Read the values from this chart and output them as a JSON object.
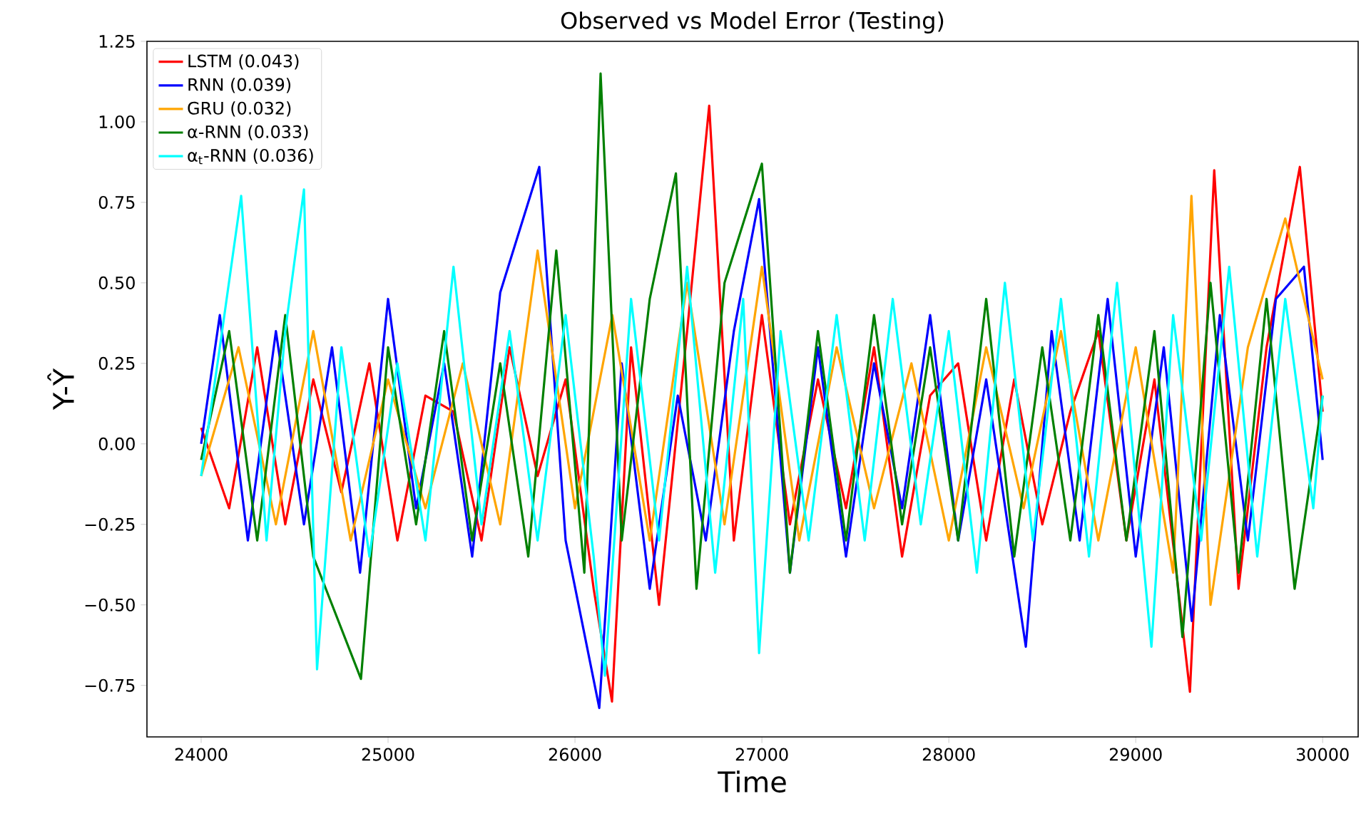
{
  "chart_data": {
    "type": "line",
    "title": "Observed vs Model Error (Testing)",
    "xlabel": "Time",
    "ylabel": "Y-Ŷ",
    "xlim": [
      23710,
      30190
    ],
    "ylim": [
      -0.91,
      1.25
    ],
    "xticks": [
      24000,
      25000,
      26000,
      27000,
      28000,
      29000,
      30000
    ],
    "yticks": [
      {
        "value": -0.75,
        "label": "−0.75"
      },
      {
        "value": -0.5,
        "label": "−0.50"
      },
      {
        "value": -0.25,
        "label": "−0.25"
      },
      {
        "value": 0,
        "label": "0.00"
      },
      {
        "value": 0.25,
        "label": "0.25"
      },
      {
        "value": 0.5,
        "label": "0.50"
      },
      {
        "value": 0.75,
        "label": "0.75"
      },
      {
        "value": 1.0,
        "label": "1.00"
      },
      {
        "value": 1.25,
        "label": "1.25"
      }
    ],
    "legend": "top left",
    "line_style": "solid",
    "series": [
      {
        "name": "LSTM (0.043)",
        "color": "#ff0000",
        "x": [
          24000,
          24150,
          24300,
          24450,
          24600,
          24750,
          24900,
          25050,
          25200,
          25350,
          25500,
          25650,
          25800,
          25950,
          26100,
          26198,
          26300,
          26450,
          26600,
          26718,
          26850,
          27000,
          27150,
          27300,
          27450,
          27600,
          27750,
          27900,
          28050,
          28200,
          28350,
          28500,
          28650,
          28800,
          28950,
          29100,
          29290,
          29420,
          29550,
          29700,
          29878,
          30000
        ],
        "values": [
          0.05,
          -0.2,
          0.3,
          -0.25,
          0.2,
          -0.15,
          0.25,
          -0.3,
          0.15,
          0.1,
          -0.3,
          0.3,
          -0.1,
          0.2,
          -0.45,
          -0.8,
          0.3,
          -0.5,
          0.35,
          1.05,
          -0.3,
          0.4,
          -0.25,
          0.2,
          -0.2,
          0.3,
          -0.35,
          0.15,
          0.25,
          -0.3,
          0.2,
          -0.25,
          0.1,
          0.35,
          -0.3,
          0.2,
          -0.77,
          0.85,
          -0.45,
          0.3,
          0.86,
          0.1
        ]
      },
      {
        "name": "RNN (0.039)",
        "color": "#0000ff",
        "x": [
          24000,
          24100,
          24250,
          24400,
          24550,
          24700,
          24850,
          25000,
          25150,
          25300,
          25450,
          25600,
          25809,
          25950,
          26130,
          26250,
          26400,
          26550,
          26700,
          26850,
          26985,
          27150,
          27300,
          27450,
          27600,
          27750,
          27900,
          28050,
          28200,
          28412,
          28550,
          28700,
          28850,
          29000,
          29150,
          29300,
          29450,
          29600,
          29750,
          29900,
          30000
        ],
        "values": [
          0,
          0.4,
          -0.3,
          0.35,
          -0.25,
          0.3,
          -0.4,
          0.45,
          -0.2,
          0.25,
          -0.35,
          0.47,
          0.86,
          -0.3,
          -0.82,
          0.25,
          -0.45,
          0.15,
          -0.3,
          0.35,
          0.76,
          -0.4,
          0.3,
          -0.35,
          0.25,
          -0.2,
          0.4,
          -0.3,
          0.2,
          -0.63,
          0.35,
          -0.3,
          0.45,
          -0.35,
          0.3,
          -0.55,
          0.4,
          -0.3,
          0.45,
          0.55,
          -0.05
        ]
      },
      {
        "name": "GRU (0.032)",
        "color": "#ffa500",
        "x": [
          24000,
          24200,
          24400,
          24600,
          24800,
          25000,
          25200,
          25400,
          25600,
          25800,
          26000,
          26200,
          26400,
          26600,
          26800,
          27000,
          27200,
          27400,
          27600,
          27800,
          28000,
          28200,
          28400,
          28600,
          28800,
          29000,
          29200,
          29298,
          29400,
          29600,
          29800,
          30000
        ],
        "values": [
          -0.1,
          0.3,
          -0.25,
          0.35,
          -0.3,
          0.2,
          -0.2,
          0.25,
          -0.25,
          0.6,
          -0.2,
          0.4,
          -0.3,
          0.5,
          -0.25,
          0.55,
          -0.3,
          0.3,
          -0.2,
          0.25,
          -0.3,
          0.3,
          -0.2,
          0.35,
          -0.3,
          0.3,
          -0.4,
          0.77,
          -0.5,
          0.3,
          0.7,
          0.2
        ]
      },
      {
        "name": "α-RNN (0.033)",
        "color": "#008000",
        "x": [
          24000,
          24150,
          24300,
          24450,
          24600,
          24855,
          25000,
          25150,
          25300,
          25450,
          25600,
          25750,
          25900,
          26050,
          26137,
          26250,
          26400,
          26540,
          26650,
          26800,
          27000,
          27150,
          27300,
          27450,
          27600,
          27750,
          27900,
          28050,
          28200,
          28350,
          28500,
          28650,
          28800,
          28950,
          29100,
          29250,
          29400,
          29550,
          29700,
          29850,
          30000
        ],
        "values": [
          -0.05,
          0.35,
          -0.3,
          0.4,
          -0.35,
          -0.73,
          0.3,
          -0.25,
          0.35,
          -0.3,
          0.25,
          -0.35,
          0.6,
          -0.4,
          1.15,
          -0.3,
          0.45,
          0.84,
          -0.45,
          0.5,
          0.87,
          -0.4,
          0.35,
          -0.3,
          0.4,
          -0.25,
          0.3,
          -0.3,
          0.45,
          -0.35,
          0.3,
          -0.3,
          0.4,
          -0.3,
          0.35,
          -0.6,
          0.5,
          -0.4,
          0.45,
          -0.45,
          0.15
        ]
      },
      {
        "name": "α$_{t}$-RNN (0.036)",
        "color": "#00ffff",
        "x": [
          24000,
          24100,
          24214,
          24350,
          24450,
          24550,
          24620,
          24750,
          24900,
          25050,
          25200,
          25350,
          25500,
          25650,
          25800,
          25950,
          26100,
          26160,
          26300,
          26450,
          26600,
          26750,
          26900,
          26985,
          27100,
          27250,
          27400,
          27550,
          27700,
          27850,
          28000,
          28150,
          28300,
          28450,
          28600,
          28750,
          28900,
          29084,
          29200,
          29350,
          29500,
          29650,
          29800,
          29950,
          30000
        ],
        "values": [
          -0.1,
          0.3,
          0.77,
          -0.3,
          0.35,
          0.79,
          -0.7,
          0.3,
          -0.35,
          0.25,
          -0.3,
          0.55,
          -0.25,
          0.35,
          -0.3,
          0.4,
          -0.35,
          -0.72,
          0.45,
          -0.3,
          0.55,
          -0.4,
          0.45,
          -0.65,
          0.35,
          -0.3,
          0.4,
          -0.3,
          0.45,
          -0.25,
          0.35,
          -0.4,
          0.5,
          -0.3,
          0.45,
          -0.35,
          0.5,
          -0.63,
          0.4,
          -0.3,
          0.55,
          -0.35,
          0.45,
          -0.2,
          0.15
        ]
      }
    ]
  }
}
